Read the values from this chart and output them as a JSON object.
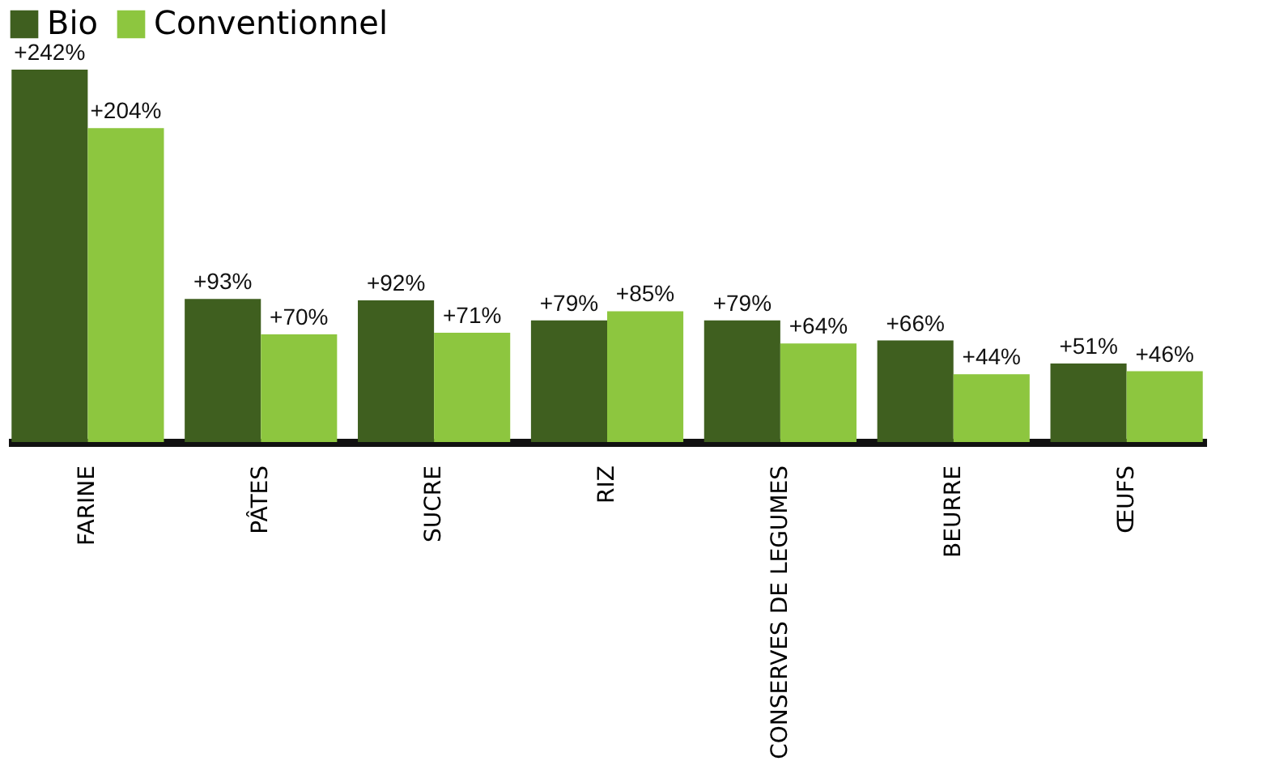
{
  "chart_data": {
    "type": "bar",
    "categories": [
      "FARINE",
      "PÂTES",
      "SUCRE",
      "RIZ",
      "CONSERVES DE LEGUMES",
      "BEURRE",
      "ŒUFS"
    ],
    "series": [
      {
        "name": "Bio",
        "color": "#3f5f1f",
        "values": [
          242,
          93,
          92,
          79,
          79,
          66,
          51
        ],
        "value_labels": [
          "+242%",
          "+93%",
          "+92%",
          "+79%",
          "+79%",
          "+66%",
          "+51%"
        ]
      },
      {
        "name": "Conventionnel",
        "color": "#8dc63f",
        "values": [
          204,
          70,
          71,
          85,
          64,
          44,
          46
        ],
        "value_labels": [
          "+204%",
          "+70%",
          "+71%",
          "+85%",
          "+64%",
          "+44%",
          "+46%"
        ]
      }
    ],
    "legend": "top",
    "grid": false,
    "tick_labels": "x"
  }
}
